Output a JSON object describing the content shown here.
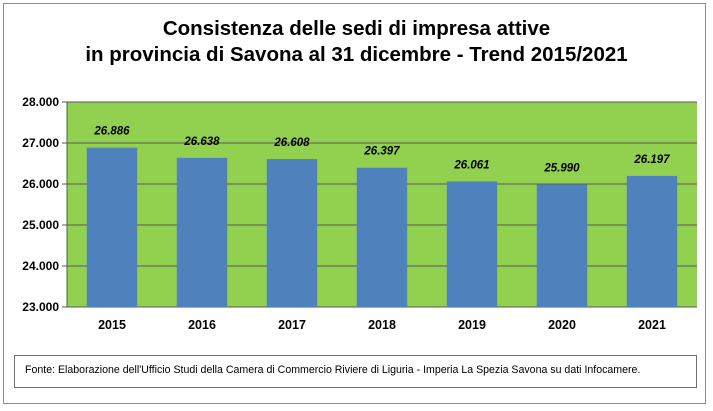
{
  "title": {
    "line1": "Consistenza delle sedi di impresa attive",
    "line2": "in provincia di Savona al 31 dicembre  - Trend 2015/2021"
  },
  "colors": {
    "plot_background": "#92d050",
    "bar": "#4f81bd",
    "gridline": "#595959"
  },
  "chart_data": {
    "type": "bar",
    "title": "Consistenza delle sedi di impresa attive in provincia di Savona al 31 dicembre  - Trend 2015/2021",
    "categories": [
      "2015",
      "2016",
      "2017",
      "2018",
      "2019",
      "2020",
      "2021"
    ],
    "values": [
      26886,
      26638,
      26608,
      26397,
      26061,
      25990,
      26197
    ],
    "value_labels": [
      "26.886",
      "26.638",
      "26.608",
      "26.397",
      "26.061",
      "25.990",
      "26.197"
    ],
    "ylim": [
      23000,
      28000
    ],
    "yticks": [
      23000,
      24000,
      25000,
      26000,
      27000,
      28000
    ],
    "ytick_labels": [
      "23.000",
      "24.000",
      "25.000",
      "26.000",
      "27.000",
      "28.000"
    ],
    "xlabel": "",
    "ylabel": "",
    "grid": true,
    "legend": "none"
  },
  "source": "Fonte:  Elaborazione dell'Ufficio Studi della Camera di Commercio Riviere di Liguria - Imperia La Spezia Savona su dati Infocamere."
}
